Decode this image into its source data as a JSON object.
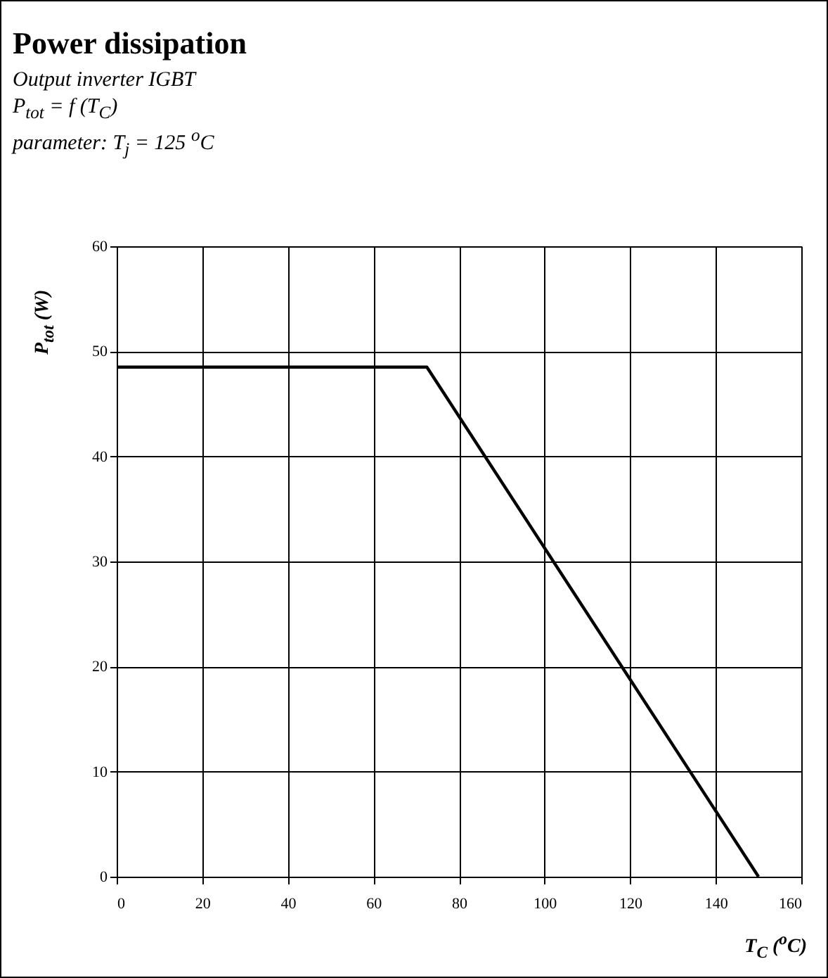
{
  "chart_data": {
    "type": "line",
    "title": "Power dissipation",
    "subtitle": "Output inverter IGBT",
    "annotations": [
      "P$_{tot}$ = f (T$_{C}$)",
      "parameter: T$_{j}$ = 125 $^{o}$C"
    ],
    "xlabel": "T$_{C}$ ($^{o}$C)",
    "ylabel": "P$_{tot}$ (W)",
    "x": [
      0,
      72.5,
      150
    ],
    "series": [
      {
        "color": "#000000",
        "values": [
          48.5,
          48.5,
          0
        ]
      }
    ],
    "xlim": [
      0,
      160
    ],
    "xticks": [
      0,
      20,
      40,
      60,
      80,
      100,
      120,
      140,
      160
    ],
    "ylim": [
      0,
      60
    ],
    "yticks": [
      0,
      10,
      20,
      30,
      40,
      50,
      60
    ],
    "grid": true,
    "legend": false,
    "marker": "none",
    "line_style": "solid"
  }
}
